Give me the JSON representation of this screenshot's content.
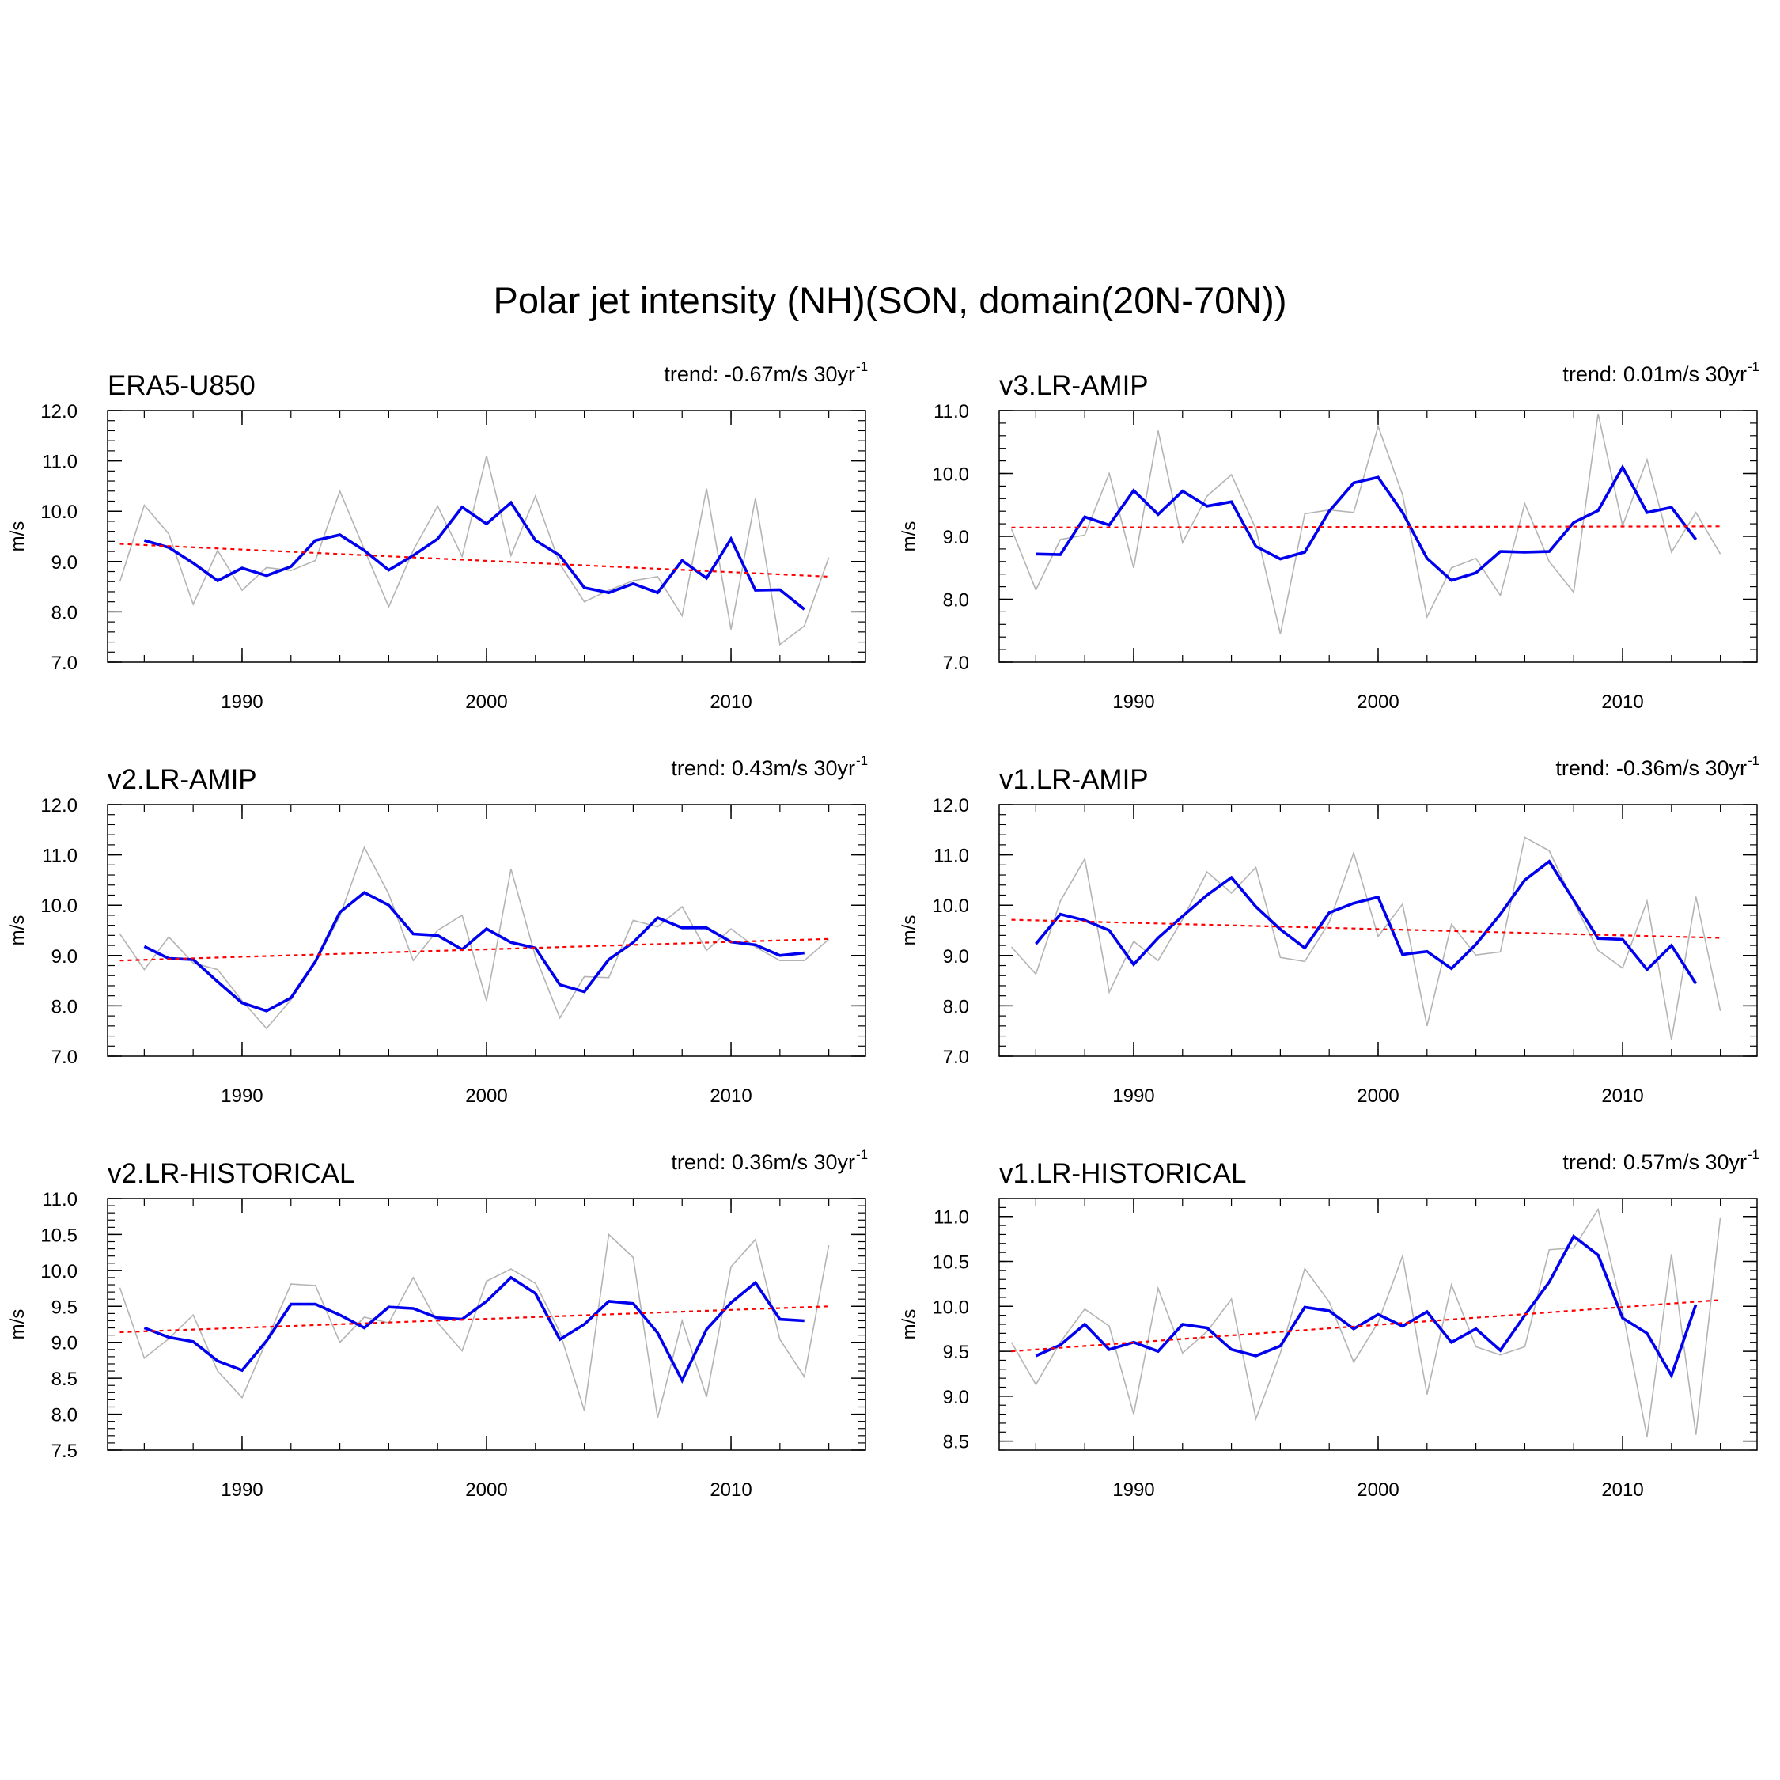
{
  "title": "Polar jet intensity (NH)(SON, domain(20N-70N))",
  "colors": {
    "raw": "#b4b4b4",
    "smooth": "#0000ee",
    "trend": "#ff0000",
    "axis": "#000000"
  },
  "chart_data": [
    {
      "type": "line",
      "panel_title": "ERA5-U850",
      "trend_label": "trend: -0.67m/s 30yr",
      "trend_exp": "-1",
      "ylabel": "m/s",
      "xlim": [
        1984.5,
        2015.5
      ],
      "ylim": [
        7.0,
        12.0
      ],
      "yticks": [
        7.0,
        8.0,
        9.0,
        10.0,
        11.0,
        12.0
      ],
      "xticks": [
        1990,
        2000,
        2010
      ],
      "series": [
        {
          "values": [
            8.6,
            10.12,
            9.55,
            8.15,
            9.22,
            8.43,
            8.88,
            8.82,
            9.02,
            10.4,
            9.24,
            8.1,
            9.22,
            10.1,
            9.1,
            11.1,
            9.12,
            10.3,
            8.95,
            8.2,
            8.43,
            8.62,
            8.7,
            7.92,
            10.45,
            7.65,
            10.26,
            7.35,
            7.72,
            9.08
          ],
          "x": [
            1985,
            1986,
            1987,
            1988,
            1989,
            1990,
            1991,
            1992,
            1993,
            1994,
            1995,
            1996,
            1997,
            1998,
            1999,
            2000,
            2001,
            2002,
            2003,
            2004,
            2005,
            2006,
            2007,
            2008,
            2009,
            2010,
            2011,
            2012,
            2013,
            2014
          ]
        },
        {
          "values": [
            9.42,
            9.28,
            8.97,
            8.62,
            8.87,
            8.72,
            8.9,
            9.42,
            9.53,
            9.22,
            8.83,
            9.12,
            9.45,
            10.08,
            9.75,
            10.17,
            9.42,
            9.12,
            8.48,
            8.38,
            8.56,
            8.38,
            9.02,
            8.67,
            9.45,
            8.43,
            8.44,
            8.05
          ],
          "x": [
            1986,
            1987,
            1988,
            1989,
            1990,
            1991,
            1992,
            1993,
            1994,
            1995,
            1996,
            1997,
            1998,
            1999,
            2000,
            2001,
            2002,
            2003,
            2004,
            2005,
            2006,
            2007,
            2008,
            2009,
            2010,
            2011,
            2012,
            2013
          ]
        },
        {
          "x": [
            1985,
            2014
          ],
          "values": [
            9.35,
            8.7
          ]
        }
      ]
    },
    {
      "type": "line",
      "panel_title": "v3.LR-AMIP",
      "trend_label": "trend: 0.01m/s 30yr",
      "trend_exp": "-1",
      "ylabel": "m/s",
      "xlim": [
        1984.5,
        2015.5
      ],
      "ylim": [
        7.0,
        11.0
      ],
      "yticks": [
        7.0,
        8.0,
        9.0,
        10.0,
        11.0
      ],
      "xticks": [
        1990,
        2000,
        2010
      ],
      "series": [
        {
          "values": [
            9.12,
            8.15,
            8.95,
            9.02,
            10.0,
            8.5,
            10.68,
            8.9,
            9.64,
            9.98,
            9.12,
            7.45,
            9.36,
            9.42,
            9.38,
            10.75,
            9.66,
            7.72,
            8.5,
            8.65,
            8.06,
            9.52,
            8.6,
            8.11,
            10.95,
            9.17,
            10.22,
            8.75,
            9.38,
            8.72
          ],
          "x": [
            1985,
            1986,
            1987,
            1988,
            1989,
            1990,
            1991,
            1992,
            1993,
            1994,
            1995,
            1996,
            1997,
            1998,
            1999,
            2000,
            2001,
            2002,
            2003,
            2004,
            2005,
            2006,
            2007,
            2008,
            2009,
            2010,
            2011,
            2012,
            2013,
            2014
          ]
        },
        {
          "values": [
            8.72,
            8.71,
            9.31,
            9.18,
            9.73,
            9.35,
            9.72,
            9.48,
            9.55,
            8.84,
            8.64,
            8.75,
            9.4,
            9.85,
            9.94,
            9.38,
            8.65,
            8.3,
            8.42,
            8.76,
            8.75,
            8.76,
            9.22,
            9.41,
            10.1,
            9.38,
            9.46,
            8.95
          ],
          "x": [
            1986,
            1987,
            1988,
            1989,
            1990,
            1991,
            1992,
            1993,
            1994,
            1995,
            1996,
            1997,
            1998,
            1999,
            2000,
            2001,
            2002,
            2003,
            2004,
            2005,
            2006,
            2007,
            2008,
            2009,
            2010,
            2011,
            2012,
            2013
          ]
        },
        {
          "x": [
            1985,
            2014
          ],
          "values": [
            9.14,
            9.16
          ]
        }
      ]
    },
    {
      "type": "line",
      "panel_title": "v2.LR-AMIP",
      "trend_label": "trend: 0.43m/s 30yr",
      "trend_exp": "-1",
      "ylabel": "m/s",
      "xlim": [
        1984.5,
        2015.5
      ],
      "ylim": [
        7.0,
        12.0
      ],
      "yticks": [
        7.0,
        8.0,
        9.0,
        10.0,
        11.0,
        12.0
      ],
      "xticks": [
        1990,
        2000,
        2010
      ],
      "series": [
        {
          "values": [
            9.43,
            8.72,
            9.37,
            8.85,
            8.72,
            8.1,
            7.55,
            8.12,
            8.86,
            9.78,
            11.15,
            10.22,
            8.9,
            9.5,
            9.8,
            8.1,
            10.72,
            8.98,
            7.76,
            8.58,
            8.56,
            9.7,
            9.57,
            9.97,
            9.1,
            9.53,
            9.17,
            8.9,
            8.9,
            9.32
          ],
          "x": [
            1985,
            1986,
            1987,
            1988,
            1989,
            1990,
            1991,
            1992,
            1993,
            1994,
            1995,
            1996,
            1997,
            1998,
            1999,
            2000,
            2001,
            2002,
            2003,
            2004,
            2005,
            2006,
            2007,
            2008,
            2009,
            2010,
            2011,
            2012,
            2013,
            2014
          ]
        },
        {
          "values": [
            9.18,
            8.94,
            8.92,
            8.48,
            8.06,
            7.9,
            8.16,
            8.88,
            9.86,
            10.25,
            10.0,
            9.43,
            9.4,
            9.12,
            9.53,
            9.26,
            9.15,
            8.42,
            8.28,
            8.92,
            9.26,
            9.75,
            9.55,
            9.55,
            9.27,
            9.21,
            9.0,
            9.05
          ],
          "x": [
            1986,
            1987,
            1988,
            1989,
            1990,
            1991,
            1992,
            1993,
            1994,
            1995,
            1996,
            1997,
            1998,
            1999,
            2000,
            2001,
            2002,
            2003,
            2004,
            2005,
            2006,
            2007,
            2008,
            2009,
            2010,
            2011,
            2012,
            2013
          ]
        },
        {
          "x": [
            1985,
            2014
          ],
          "values": [
            8.9,
            9.33
          ]
        }
      ]
    },
    {
      "type": "line",
      "panel_title": "v1.LR-AMIP",
      "trend_label": "trend: -0.36m/s 30yr",
      "trend_exp": "-1",
      "ylabel": "m/s",
      "xlim": [
        1984.5,
        2015.5
      ],
      "ylim": [
        7.0,
        12.0
      ],
      "yticks": [
        7.0,
        8.0,
        9.0,
        10.0,
        11.0,
        12.0
      ],
      "xticks": [
        1990,
        2000,
        2010
      ],
      "series": [
        {
          "values": [
            9.17,
            8.63,
            10.08,
            10.92,
            8.27,
            9.28,
            8.9,
            9.72,
            10.66,
            10.24,
            10.75,
            8.96,
            8.88,
            9.66,
            11.04,
            9.38,
            10.02,
            7.6,
            9.62,
            9.01,
            9.07,
            11.35,
            11.08,
            10.06,
            9.1,
            8.75,
            10.08,
            7.33,
            10.17,
            7.9
          ],
          "x": [
            1985,
            1986,
            1987,
            1988,
            1989,
            1990,
            1991,
            1992,
            1993,
            1994,
            1995,
            1996,
            1997,
            1998,
            1999,
            2000,
            2001,
            2002,
            2003,
            2004,
            2005,
            2006,
            2007,
            2008,
            2009,
            2010,
            2011,
            2012,
            2013,
            2014
          ]
        },
        {
          "values": [
            9.23,
            9.82,
            9.7,
            9.5,
            8.82,
            9.35,
            9.78,
            10.2,
            10.55,
            9.97,
            9.52,
            9.15,
            9.85,
            10.04,
            10.16,
            9.02,
            9.08,
            8.74,
            9.22,
            9.82,
            10.5,
            10.87,
            10.1,
            9.34,
            9.32,
            8.72,
            9.2,
            8.44
          ],
          "x": [
            1986,
            1987,
            1988,
            1989,
            1990,
            1991,
            1992,
            1993,
            1994,
            1995,
            1996,
            1997,
            1998,
            1999,
            2000,
            2001,
            2002,
            2003,
            2004,
            2005,
            2006,
            2007,
            2008,
            2009,
            2010,
            2011,
            2012,
            2013
          ]
        },
        {
          "x": [
            1985,
            2014
          ],
          "values": [
            9.71,
            9.35
          ]
        }
      ]
    },
    {
      "type": "line",
      "panel_title": "v2.LR-HISTORICAL",
      "trend_label": "trend: 0.36m/s 30yr",
      "trend_exp": "-1",
      "ylabel": "m/s",
      "xlim": [
        1984.5,
        2015.5
      ],
      "ylim": [
        7.5,
        11.0
      ],
      "yticks": [
        7.5,
        8.0,
        8.5,
        9.0,
        9.5,
        10.0,
        10.5,
        11.0
      ],
      "xticks": [
        1990,
        2000,
        2010
      ],
      "series": [
        {
          "values": [
            9.76,
            8.78,
            9.05,
            9.38,
            8.6,
            8.23,
            9.02,
            9.81,
            9.79,
            9.0,
            9.35,
            9.27,
            9.9,
            9.27,
            8.88,
            9.85,
            10.02,
            9.82,
            9.14,
            8.05,
            10.5,
            10.18,
            7.95,
            9.3,
            8.24,
            10.05,
            10.43,
            9.04,
            8.52,
            10.35
          ],
          "x": [
            1985,
            1986,
            1987,
            1988,
            1989,
            1990,
            1991,
            1992,
            1993,
            1994,
            1995,
            1996,
            1997,
            1998,
            1999,
            2000,
            2001,
            2002,
            2003,
            2004,
            2005,
            2006,
            2007,
            2008,
            2009,
            2010,
            2011,
            2012,
            2013,
            2014
          ]
        },
        {
          "values": [
            9.2,
            9.07,
            9.01,
            8.74,
            8.61,
            9.02,
            9.53,
            9.53,
            9.38,
            9.2,
            9.49,
            9.47,
            9.34,
            9.32,
            9.57,
            9.9,
            9.68,
            9.04,
            9.25,
            9.57,
            9.54,
            9.13,
            8.47,
            9.18,
            9.55,
            9.83,
            9.32,
            9.3
          ],
          "x": [
            1986,
            1987,
            1988,
            1989,
            1990,
            1991,
            1992,
            1993,
            1994,
            1995,
            1996,
            1997,
            1998,
            1999,
            2000,
            2001,
            2002,
            2003,
            2004,
            2005,
            2006,
            2007,
            2008,
            2009,
            2010,
            2011,
            2012,
            2013
          ]
        },
        {
          "x": [
            1985,
            2014
          ],
          "values": [
            9.14,
            9.5
          ]
        }
      ]
    },
    {
      "type": "line",
      "panel_title": "v1.LR-HISTORICAL",
      "trend_label": "trend: 0.57m/s 30yr",
      "trend_exp": "-1",
      "ylabel": "m/s",
      "xlim": [
        1984.5,
        2015.5
      ],
      "ylim": [
        8.4,
        11.2
      ],
      "yticks": [
        8.5,
        9.0,
        9.5,
        10.0,
        10.5,
        11.0
      ],
      "xticks": [
        1990,
        2000,
        2010
      ],
      "series": [
        {
          "values": [
            9.6,
            9.13,
            9.6,
            9.97,
            9.78,
            8.8,
            10.2,
            9.48,
            9.72,
            10.08,
            8.75,
            9.48,
            10.42,
            10.05,
            9.38,
            9.82,
            10.56,
            9.02,
            10.24,
            9.55,
            9.46,
            9.55,
            10.63,
            10.65,
            11.08,
            9.95,
            8.55,
            10.58,
            8.57,
            10.99
          ],
          "x": [
            1985,
            1986,
            1987,
            1988,
            1989,
            1990,
            1991,
            1992,
            1993,
            1994,
            1995,
            1996,
            1997,
            1998,
            1999,
            2000,
            2001,
            2002,
            2003,
            2004,
            2005,
            2006,
            2007,
            2008,
            2009,
            2010,
            2011,
            2012,
            2013,
            2014
          ]
        },
        {
          "values": [
            9.45,
            9.57,
            9.8,
            9.52,
            9.6,
            9.5,
            9.8,
            9.76,
            9.52,
            9.45,
            9.56,
            9.99,
            9.95,
            9.75,
            9.91,
            9.78,
            9.94,
            9.6,
            9.75,
            9.51,
            9.9,
            10.27,
            10.78,
            10.57,
            9.87,
            9.7,
            9.23,
            10.02
          ],
          "x": [
            1986,
            1987,
            1988,
            1989,
            1990,
            1991,
            1992,
            1993,
            1994,
            1995,
            1996,
            1997,
            1998,
            1999,
            2000,
            2001,
            2002,
            2003,
            2004,
            2005,
            2006,
            2007,
            2008,
            2009,
            2010,
            2011,
            2012,
            2013
          ]
        },
        {
          "x": [
            1985,
            2014
          ],
          "values": [
            9.5,
            10.07
          ]
        }
      ]
    }
  ]
}
